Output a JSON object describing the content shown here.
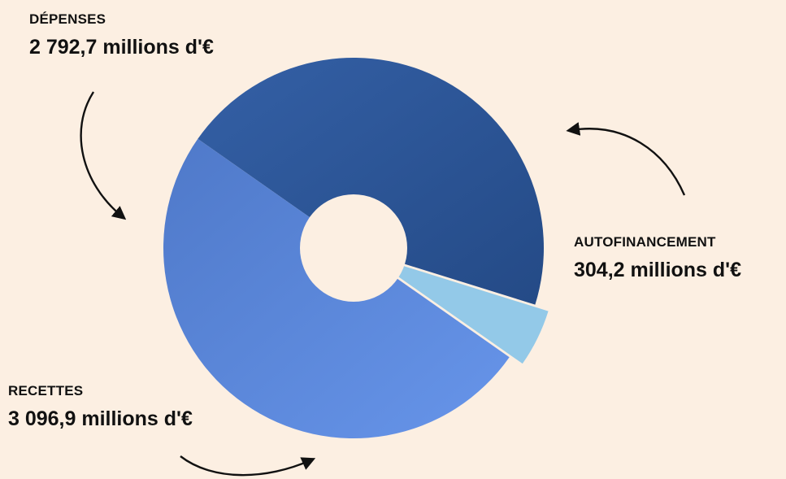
{
  "chart_data": {
    "type": "pie",
    "variant": "donut",
    "title": "",
    "slices": [
      {
        "label": "DÉPENSES",
        "value_text": "2 792,7 millions d'€",
        "value": 2792.7,
        "color": "#2e5496"
      },
      {
        "label": "AUTOFINANCEMENT",
        "value_text": "304,2 millions d'€",
        "value": 304.2,
        "color": "#93c9e8",
        "exploded": true
      },
      {
        "label": "RECETTES",
        "value_text": "3 096,9 millions d'€",
        "value": 3096.9,
        "color": "#5b86d9"
      }
    ]
  },
  "labels": {
    "depenses": {
      "title": "DÉPENSES",
      "value": "2 792,7 millions d'€"
    },
    "autofinancement": {
      "title": "AUTOFINANCEMENT",
      "value": "304,2 millions d'€"
    },
    "recettes": {
      "title": "RECETTES",
      "value": "3 096,9 millions d'€"
    }
  },
  "colors": {
    "background": "#fcefe2",
    "depenses": "#2e5496",
    "recettes": "#5b86d9",
    "autofinancement": "#93c9e8",
    "arrow": "#111111"
  }
}
